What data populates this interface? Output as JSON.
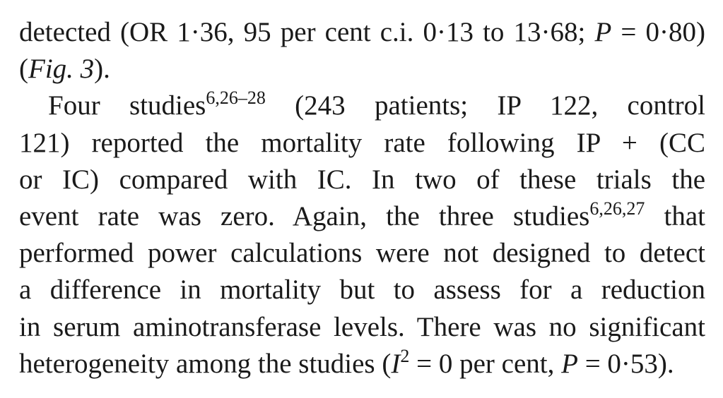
{
  "paragraph1": {
    "line1": "detected (OR 1·36, 95 per cent c.i. 0·13 to 13·68; ",
    "line1_p_italic": "P",
    "line1_tail": " = 0·80)",
    "line2_open": "(",
    "line2_fig": "Fig. 3",
    "line2_close": ")."
  },
  "paragraph2": {
    "line1_a": "Four studies",
    "line1_sup": "6,26–28",
    "line1_b": " (243 patients; IP 122, control",
    "line2": "121) reported the mortality rate following IP + (CC",
    "line3": "or IC) compared with IC. In two of these trials the",
    "line4_a": "event rate was zero. Again, the three studies",
    "line4_sup": "6,26,27",
    "line4_b": " that",
    "line5": "performed power calculations were not designed to detect",
    "line6": "a difference in mortality but to assess for a reduction",
    "line7": "in serum aminotransferase levels. There was no significant",
    "line8_a": "heterogeneity among the studies (",
    "line8_i": "I",
    "line8_sup": "2",
    "line8_b": " = 0 per cent, ",
    "line8_p": "P",
    "line8_c": " = 0·53)."
  }
}
